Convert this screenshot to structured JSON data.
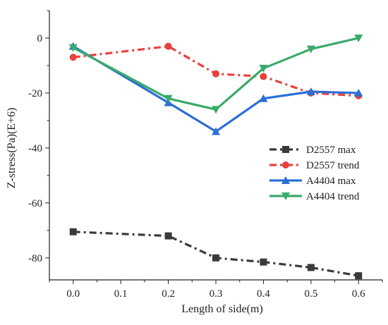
{
  "chart_data": {
    "type": "line",
    "xlabel": "Length of side(m)",
    "ylabel": "Z-stress(Pa)(E+6)",
    "xlim": [
      -0.05,
      0.65
    ],
    "ylim": [
      -88,
      10
    ],
    "xticks": [
      0.0,
      0.1,
      0.2,
      0.3,
      0.4,
      0.5,
      0.6
    ],
    "xtick_labels": [
      "0.0",
      "0.1",
      "0.2",
      "0.3",
      "0.4",
      "0.5",
      "0.6"
    ],
    "yticks": [
      0,
      -20,
      -40,
      -60,
      -80
    ],
    "ytick_labels": [
      "0",
      "-20",
      "-40",
      "-60",
      "-80"
    ],
    "grid": false,
    "legend_position": "right-middle",
    "series": [
      {
        "name": "D2557 max",
        "color": "#3a3a3a",
        "marker": "square",
        "line_style": "dash-dot",
        "x": [
          0.0,
          0.2,
          0.3,
          0.4,
          0.5,
          0.6
        ],
        "y": [
          -70.5,
          -72,
          -80,
          -81.5,
          -83.5,
          -86.5
        ]
      },
      {
        "name": "D2557 trend",
        "color": "#e8413c",
        "marker": "circle",
        "line_style": "dash-dot",
        "x": [
          0.0,
          0.2,
          0.3,
          0.4,
          0.5,
          0.6
        ],
        "y": [
          -7,
          -3,
          -13,
          -14,
          -20,
          -21
        ]
      },
      {
        "name": "A4404 max",
        "color": "#2b6fd6",
        "marker": "triangle-up",
        "line_style": "solid",
        "x": [
          0.0,
          0.2,
          0.3,
          0.4,
          0.5,
          0.6
        ],
        "y": [
          -3,
          -23.5,
          -34,
          -22,
          -19.5,
          -20
        ]
      },
      {
        "name": "A4404 trend",
        "color": "#3aaa6a",
        "marker": "triangle-down",
        "line_style": "solid",
        "x": [
          0.0,
          0.2,
          0.3,
          0.4,
          0.5,
          0.6
        ],
        "y": [
          -3.5,
          -22,
          -26,
          -11,
          -4,
          0
        ]
      }
    ]
  }
}
